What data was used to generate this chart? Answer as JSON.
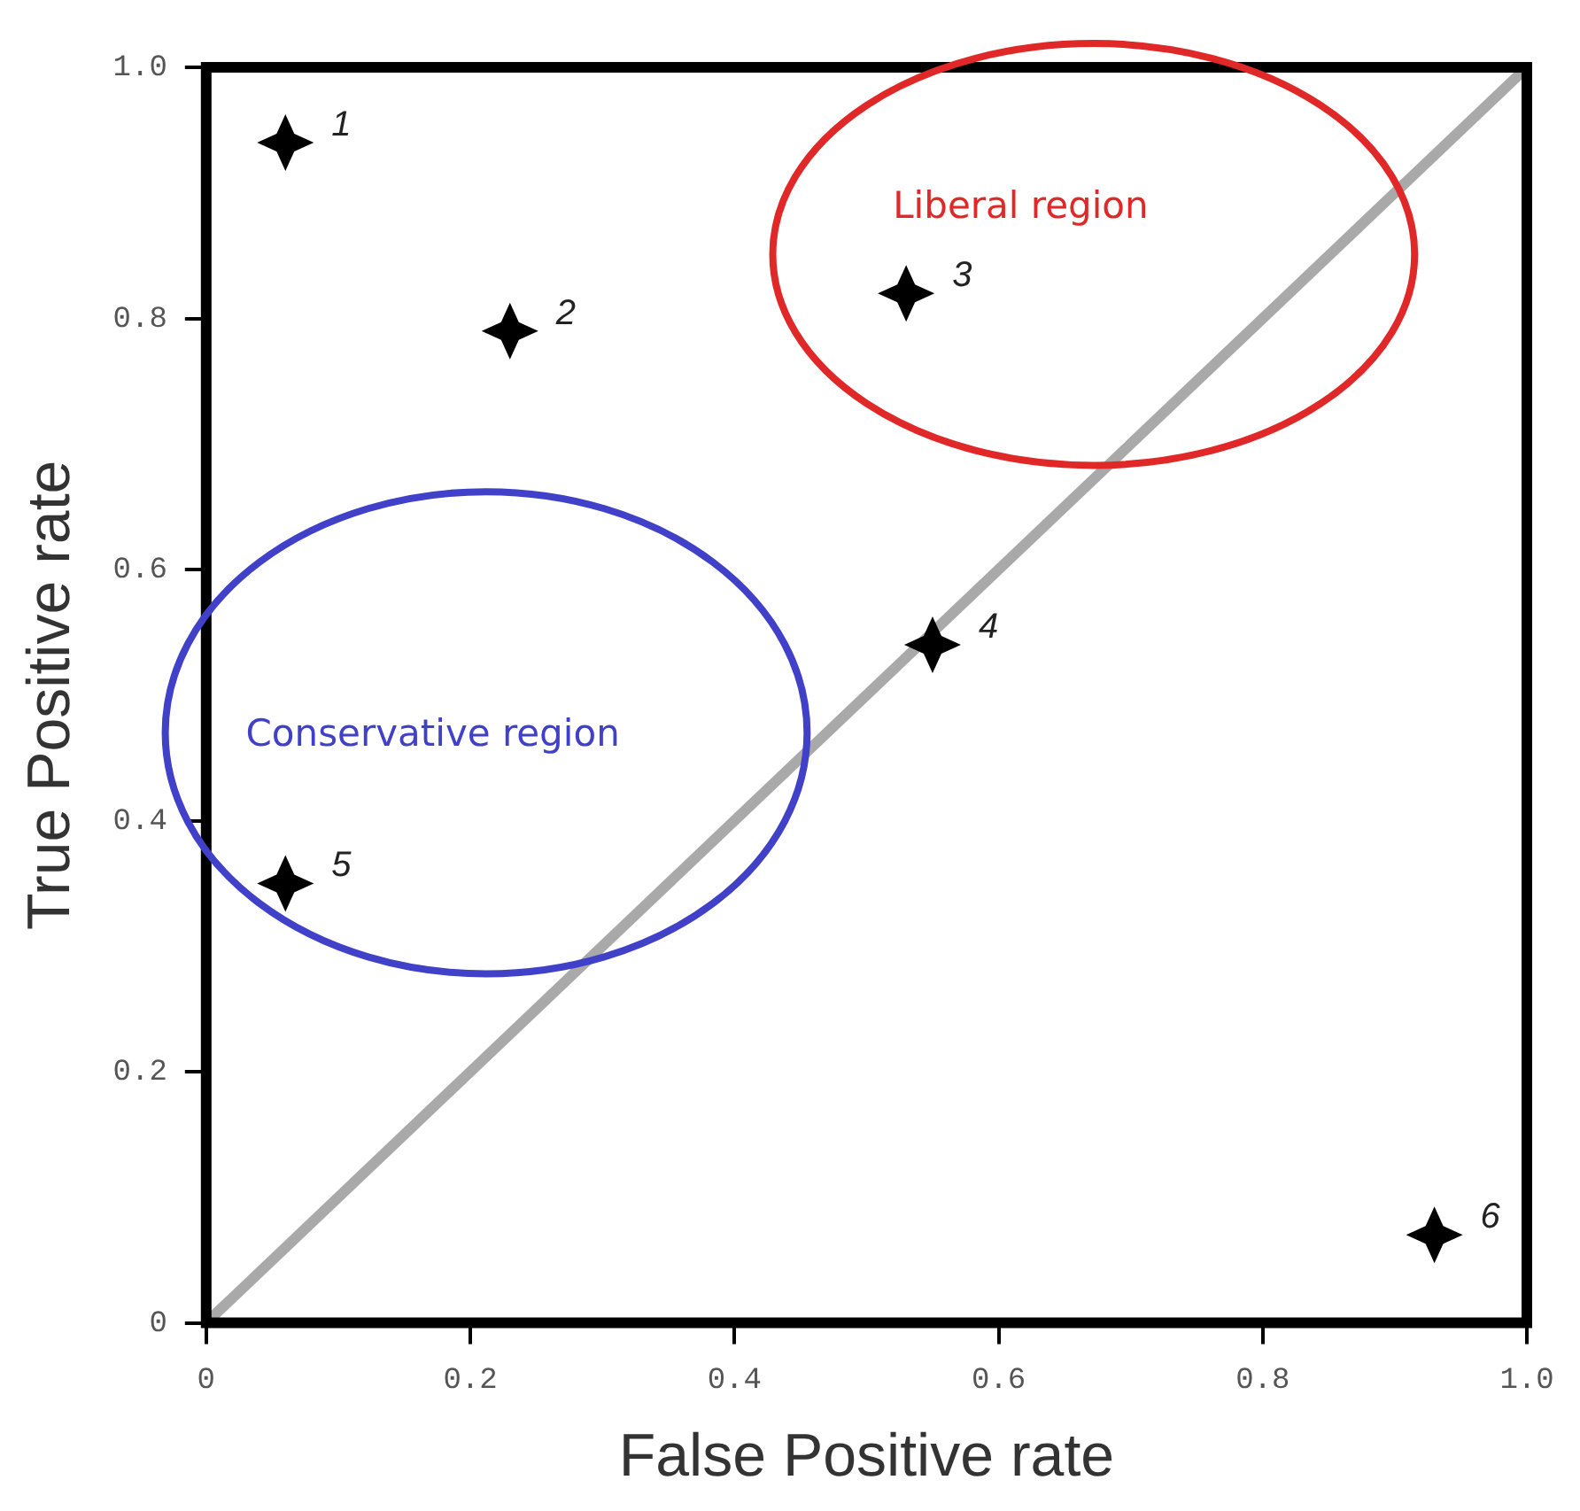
{
  "chart_data": {
    "type": "scatter",
    "xlabel": "False Positive rate",
    "ylabel": "True Positive rate",
    "xlim": [
      0,
      1
    ],
    "ylim": [
      0,
      1
    ],
    "xticks": [
      {
        "value": 0,
        "label": "0"
      },
      0.2,
      0.4,
      0.6,
      0.8,
      {
        "value": 1,
        "label": "1.0"
      }
    ],
    "yticks": [
      {
        "value": 0,
        "label": "0"
      },
      0.2,
      0.4,
      0.6,
      0.8,
      {
        "value": 1,
        "label": "1.0"
      }
    ],
    "grid": false,
    "series": [
      {
        "type": "line",
        "x": [
          0,
          1
        ],
        "values": [
          0,
          1
        ],
        "color": "#a9a9a9"
      },
      {
        "marker": "star",
        "x": [
          0.06,
          0.23,
          0.53,
          0.55,
          0.06,
          0.93
        ],
        "values": [
          0.94,
          0.79,
          0.82,
          0.54,
          0.35,
          0.07
        ],
        "color": "#000000"
      }
    ],
    "annotations": [
      {
        "text": "1",
        "x": 0.06,
        "y": 0.94
      },
      {
        "text": "2",
        "x": 0.23,
        "y": 0.79
      },
      {
        "text": "3",
        "x": 0.53,
        "y": 0.82
      },
      {
        "text": "4",
        "x": 0.55,
        "y": 0.54
      },
      {
        "text": "5",
        "x": 0.06,
        "y": 0.35
      },
      {
        "text": "6",
        "x": 0.93,
        "y": 0.07
      },
      "Liberal region",
      "Conservative region"
    ]
  }
}
